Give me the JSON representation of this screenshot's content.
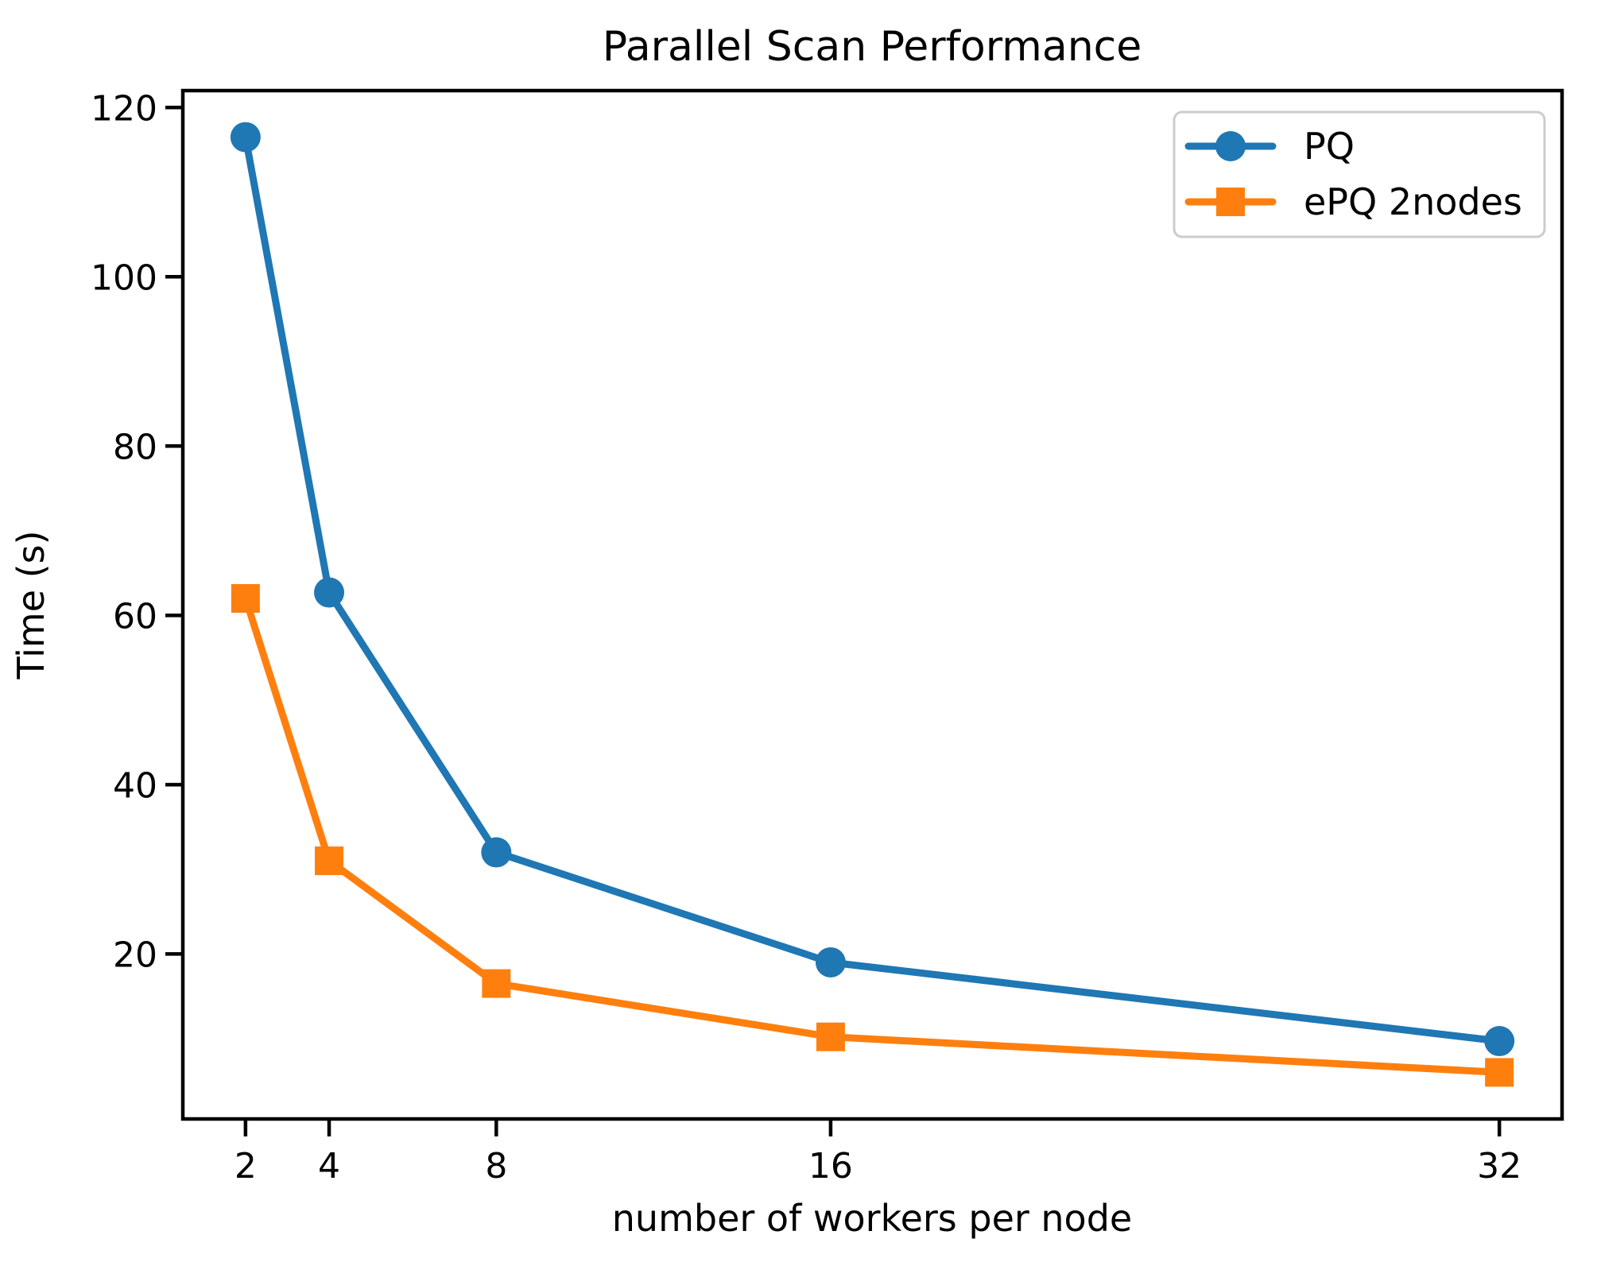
{
  "chart_data": {
    "type": "line",
    "title": "Parallel Scan Performance",
    "xlabel": "number of workers per node",
    "ylabel": "Time (s)",
    "x": [
      2,
      4,
      8,
      16,
      32
    ],
    "xticks": [
      2,
      4,
      8,
      16,
      32
    ],
    "yticks": [
      20,
      40,
      60,
      80,
      100,
      120
    ],
    "xlim": [
      0.5,
      33.5
    ],
    "ylim": [
      0.5,
      122
    ],
    "grid": false,
    "legend_position": "upper right",
    "series": [
      {
        "name": "PQ",
        "color": "#1f77b4",
        "marker": "circle",
        "values": [
          116.5,
          62.7,
          32.0,
          19.0,
          9.7
        ]
      },
      {
        "name": "ePQ 2nodes",
        "color": "#ff7f0e",
        "marker": "square",
        "values": [
          62.0,
          31.0,
          16.5,
          10.2,
          6.0
        ]
      }
    ],
    "axis_color": "#000000",
    "legend_border_color": "#cccccc",
    "background_color": "#ffffff"
  }
}
